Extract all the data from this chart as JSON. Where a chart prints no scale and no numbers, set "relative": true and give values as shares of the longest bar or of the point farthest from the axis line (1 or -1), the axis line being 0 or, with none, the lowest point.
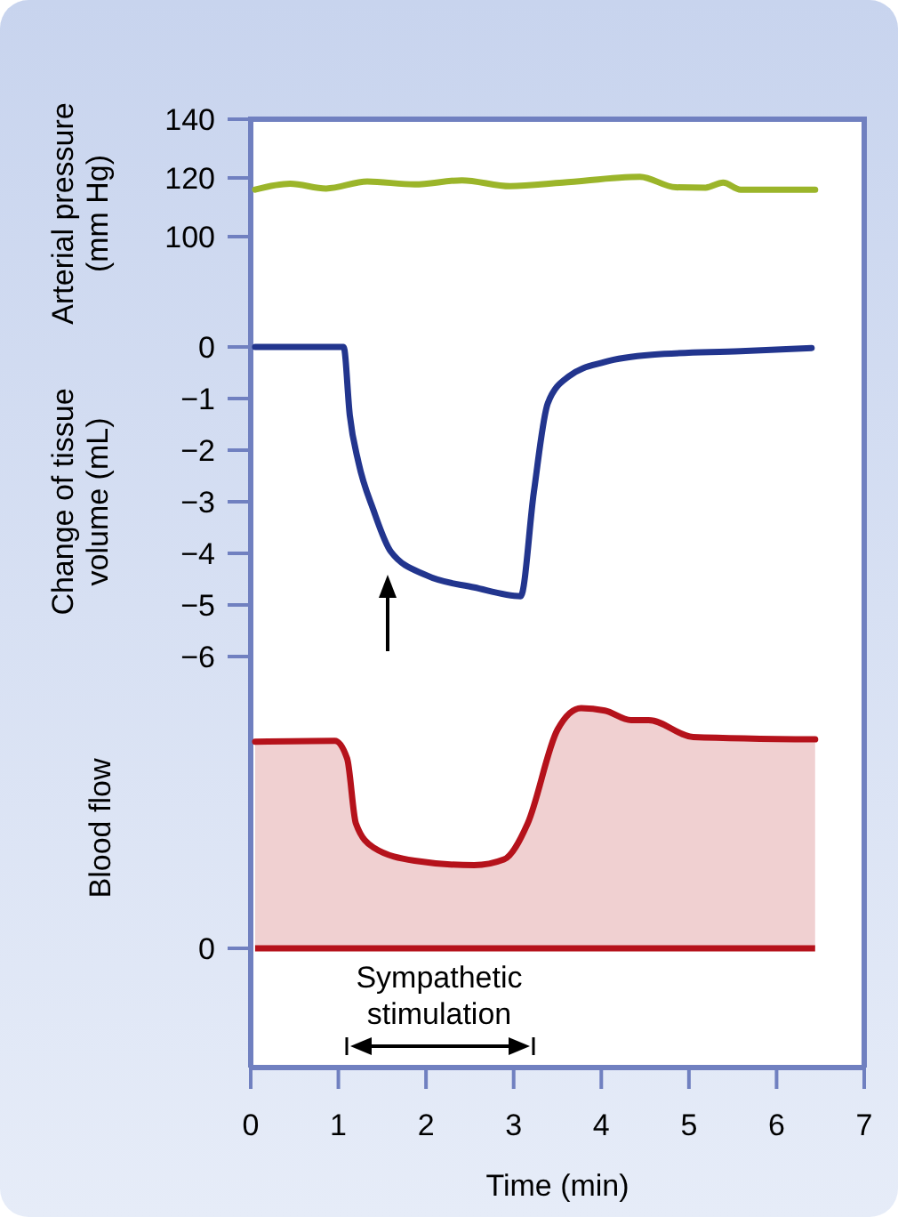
{
  "chart_data": [
    {
      "type": "line",
      "ylabel": "Arterial pressure (mm Hg)",
      "xlim": [
        0,
        7
      ],
      "ylim": [
        100,
        140
      ],
      "yticks": [
        100,
        120,
        140
      ],
      "tick_labels": "y",
      "series": [
        {
          "color": "#9bb52a",
          "x": [
            0.05,
            0.45,
            0.86,
            1.33,
            1.87,
            2.41,
            2.96,
            3.56,
            4.44,
            4.85,
            5.19,
            5.39,
            5.59,
            6.44
          ],
          "values": [
            116,
            118,
            116.4,
            118.8,
            117.8,
            119.2,
            117.2,
            118.4,
            120.4,
            116.8,
            116.7,
            118.4,
            116,
            116
          ]
        }
      ]
    },
    {
      "type": "line",
      "ylabel": "Change of tissue volume (mL)",
      "xlim": [
        0,
        7
      ],
      "ylim": [
        -6,
        0
      ],
      "yticks": [
        {
          "value": -6,
          "label": "−6"
        },
        {
          "value": -5,
          "label": "−5"
        },
        {
          "value": -4,
          "label": "−4"
        },
        {
          "value": -3,
          "label": "−3"
        },
        {
          "value": -2,
          "label": "−2"
        },
        {
          "value": -1,
          "label": "−1"
        },
        0
      ],
      "tick_labels": "y",
      "series": [
        {
          "color": "#22358e",
          "x": [
            0.05,
            1.06,
            1.13,
            1.23,
            1.4,
            1.6,
            2.01,
            2.55,
            3.08,
            3.23,
            3.39,
            3.63,
            4.04,
            4.58,
            5.59,
            6.4
          ],
          "values": [
            0,
            0,
            -1.32,
            -2.24,
            -3.16,
            -3.97,
            -4.43,
            -4.66,
            -4.83,
            -2.82,
            -1.09,
            -0.57,
            -0.29,
            -0.15,
            -0.08,
            -0.02
          ]
        }
      ]
    },
    {
      "type": "area",
      "ylabel": "Blood flow",
      "xlabel": "Time (min)",
      "relative": true,
      "xlim": [
        0,
        7
      ],
      "xticks": [
        0,
        1,
        2,
        3,
        4,
        5,
        6,
        7
      ],
      "annotations": [
        "Sympathetic stimulation"
      ],
      "ref_lines": [
        {
          "axis": "y",
          "value": 0,
          "label": "0",
          "color": "#b5121b"
        }
      ],
      "series": [
        {
          "color": "#b5121b",
          "x": [
            0.05,
            0.96,
            1.1,
            1.2,
            1.4,
            1.87,
            2.55,
            2.89,
            3.16,
            3.5,
            3.77,
            4.04,
            4.34,
            4.54,
            5.05,
            6.44
          ],
          "values": [
            0.86,
            0.864,
            0.79,
            0.52,
            0.42,
            0.365,
            0.346,
            0.37,
            0.52,
            0.91,
            1,
            0.99,
            0.95,
            0.95,
            0.88,
            0.87
          ]
        }
      ]
    }
  ]
}
